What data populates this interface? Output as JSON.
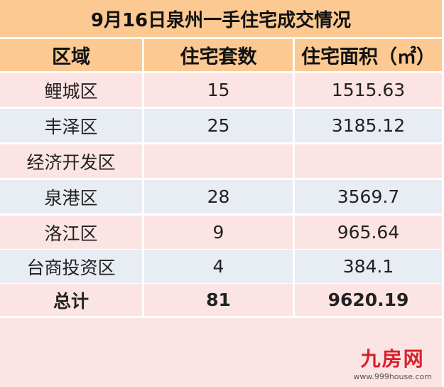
{
  "title": "9月16日泉州一手住宅成交情况",
  "headers": [
    "区域",
    "住宅套数",
    "住宅面积（㎡）"
  ],
  "rows": [
    [
      "鲤城区",
      "15",
      "1515.63"
    ],
    [
      "丰泽区",
      "25",
      "3185.12"
    ],
    [
      "经济开发区",
      "",
      ""
    ],
    [
      "泉港区",
      "28",
      "3569.7"
    ],
    [
      "洛江区",
      "9",
      "965.64"
    ],
    [
      "台商投资区",
      "4",
      "384.1"
    ]
  ],
  "total": [
    "总计",
    "81",
    "9620.19"
  ],
  "watermark": {
    "name": "九房网",
    "url": "www.999house.com"
  },
  "colors": {
    "header": "#fcc992",
    "pink_row": "#fde4e4",
    "blue_row": "#e8ecf3",
    "logo": "#d8202a"
  }
}
